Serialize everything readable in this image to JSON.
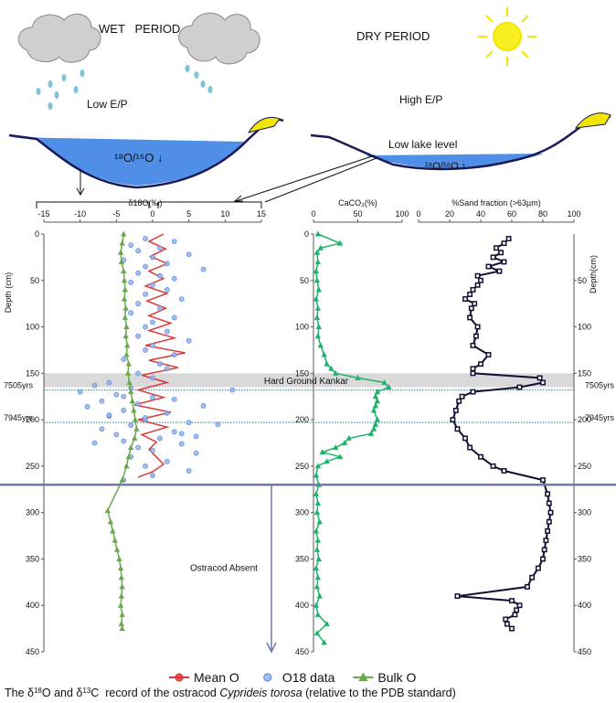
{
  "illustration": {
    "wet": "WET   PERIOD",
    "dry": "DRY PERIOD",
    "low_ep": "Low E/P",
    "high_ep": "High E/P",
    "low_lake": "Low lake level",
    "ratio_wet": "¹⁸O/¹⁶O ↓",
    "ratio_dry": "¹⁸O/¹⁶O ↑"
  },
  "chart_data": [
    {
      "type": "profile",
      "x_label": "δ18O(‰)",
      "y_label": "Depth (cm)",
      "y_axis": "left",
      "xlim": [
        -15,
        15
      ],
      "xticks": [
        -15,
        -10,
        -5,
        0,
        5,
        10,
        15
      ],
      "ylim": [
        0,
        450
      ],
      "yticks": [
        0,
        50,
        100,
        150,
        200,
        250,
        300,
        350,
        400,
        450
      ],
      "series": [
        {
          "name": "Mean O",
          "color": "#d93a3a",
          "marker": "none",
          "line": true,
          "depth": [
            0,
            8,
            16,
            24,
            32,
            40,
            48,
            56,
            64,
            72,
            80,
            88,
            96,
            104,
            112,
            120,
            128,
            136,
            144,
            152,
            160,
            168,
            176,
            184,
            192,
            200,
            208,
            216,
            224,
            232,
            240,
            248,
            256,
            262
          ],
          "values": [
            1.5,
            -0.5,
            1.8,
            -0.3,
            2.0,
            -0.5,
            1.5,
            -1.0,
            2.0,
            -0.8,
            1.8,
            -0.5,
            2.5,
            -0.5,
            3.0,
            -1.0,
            4.5,
            -0.5,
            3.5,
            -1.5,
            2.0,
            -2.0,
            1.5,
            -2.5,
            2.5,
            -2.0,
            2.0,
            -1.5,
            0.5,
            -0.5,
            0.5,
            1.5,
            0.0,
            -2.0
          ]
        },
        {
          "name": "O18 data",
          "color": "#8fb3ee",
          "marker": "circle",
          "line": false,
          "depth": [
            5,
            8,
            12,
            15,
            18,
            22,
            25,
            28,
            32,
            35,
            38,
            42,
            45,
            48,
            52,
            55,
            60,
            65,
            70,
            75,
            80,
            85,
            90,
            95,
            100,
            105,
            110,
            115,
            120,
            125,
            130,
            135,
            140,
            145,
            150,
            155,
            160,
            163,
            166,
            170,
            173,
            176,
            180,
            183,
            186,
            190,
            193,
            196,
            200,
            203,
            206,
            210,
            213,
            216,
            220,
            223,
            226,
            230,
            233,
            236,
            240,
            245,
            250,
            255,
            260,
            265,
            168,
            175,
            185,
            195,
            205,
            215,
            225,
            178,
            198,
            218
          ],
          "values": [
            -1,
            3,
            -3,
            1,
            -2,
            5,
            0,
            -4,
            2,
            -1,
            7,
            -2,
            1,
            3,
            -3,
            0,
            2,
            -1,
            4,
            -2,
            1,
            -3,
            3,
            0,
            -1,
            2,
            -2,
            5,
            0,
            -1,
            3,
            -4,
            1,
            2,
            -2,
            0,
            -6,
            -8,
            -3,
            -10,
            -5,
            0,
            -7,
            -2,
            -9,
            -4,
            2,
            -6,
            -1,
            5,
            -3,
            -7,
            3,
            -5,
            1,
            -4,
            4,
            -2,
            0,
            6,
            -3,
            2,
            -1,
            5,
            0,
            -4,
            11,
            -4,
            7,
            -6,
            9,
            4,
            -8,
            3,
            -1,
            6
          ]
        },
        {
          "name": "Bulk O",
          "color": "#6aa84f",
          "marker": "triangle",
          "line": true,
          "depth": [
            0,
            10,
            20,
            30,
            40,
            50,
            60,
            70,
            80,
            90,
            100,
            110,
            120,
            130,
            140,
            150,
            160,
            170,
            180,
            190,
            200,
            210,
            220,
            230,
            240,
            250,
            265,
            298,
            310,
            320,
            330,
            340,
            350,
            360,
            370,
            380,
            390,
            400,
            410,
            420,
            425
          ],
          "values": [
            -4.0,
            -4.2,
            -4.4,
            -4.3,
            -4.0,
            -3.9,
            -3.8,
            -3.9,
            -3.7,
            -3.8,
            -3.6,
            -3.7,
            -3.5,
            -3.6,
            -3.3,
            -3.4,
            -3.2,
            -3.0,
            -2.8,
            -2.6,
            -2.4,
            -2.2,
            -2.5,
            -3.0,
            -3.3,
            -3.6,
            -4.2,
            -6.2,
            -5.8,
            -5.5,
            -5.2,
            -4.9,
            -4.6,
            -4.4,
            -4.3,
            -4.2,
            -4.3,
            -4.4,
            -4.2,
            -4.3,
            -4.2
          ]
        }
      ]
    },
    {
      "type": "profile",
      "x_label": "CaCO₃(%)",
      "y_axis": "left",
      "xlim": [
        0,
        100
      ],
      "xticks": [
        0,
        50,
        100
      ],
      "ylim": [
        0,
        450
      ],
      "yticks": [
        0,
        50,
        100,
        150,
        200,
        250,
        300,
        350,
        400,
        450
      ],
      "series": [
        {
          "color": "#1fb36a",
          "marker": "triangle",
          "line": true,
          "depth": [
            0,
            10,
            15,
            20,
            30,
            40,
            50,
            60,
            70,
            80,
            90,
            100,
            110,
            120,
            130,
            140,
            145,
            150,
            155,
            160,
            165,
            170,
            175,
            180,
            185,
            190,
            200,
            205,
            210,
            215,
            220,
            225,
            230,
            235,
            240,
            245,
            250,
            260,
            270,
            280,
            290,
            300,
            310,
            320,
            330,
            340,
            350,
            360,
            370,
            380,
            390,
            400,
            410,
            420,
            430,
            440
          ],
          "values": [
            5,
            30,
            8,
            4,
            5,
            3,
            4,
            6,
            3,
            5,
            4,
            6,
            5,
            8,
            12,
            15,
            20,
            25,
            50,
            80,
            85,
            72,
            70,
            72,
            70,
            68,
            72,
            70,
            68,
            65,
            40,
            35,
            25,
            10,
            30,
            15,
            5,
            3,
            6,
            3,
            5,
            4,
            7,
            3,
            5,
            4,
            6,
            3,
            5,
            4,
            7,
            3,
            5,
            15,
            4,
            12
          ]
        }
      ]
    },
    {
      "type": "profile",
      "x_label": "%Sand fraction (>63µm)",
      "y_label": "Depth(cm)",
      "y_axis": "right",
      "xlim": [
        0,
        100
      ],
      "xticks": [
        0,
        20,
        40,
        60,
        80,
        100
      ],
      "ylim": [
        0,
        450
      ],
      "yticks": [
        50,
        100,
        150,
        200,
        250,
        300,
        350,
        400,
        450
      ],
      "series": [
        {
          "color": "#111133",
          "marker": "square",
          "line": true,
          "depth": [
            5,
            10,
            15,
            20,
            25,
            30,
            35,
            40,
            45,
            50,
            55,
            60,
            65,
            70,
            75,
            80,
            90,
            100,
            110,
            120,
            130,
            140,
            145,
            150,
            155,
            160,
            165,
            170,
            175,
            180,
            190,
            200,
            210,
            220,
            230,
            240,
            250,
            255,
            265,
            280,
            290,
            300,
            310,
            320,
            330,
            340,
            350,
            360,
            370,
            380,
            390,
            395,
            400,
            405,
            410,
            415,
            420,
            425
          ],
          "values": [
            58,
            55,
            50,
            53,
            48,
            55,
            45,
            52,
            38,
            40,
            38,
            35,
            33,
            30,
            36,
            34,
            33,
            38,
            37,
            35,
            45,
            40,
            35,
            35,
            78,
            80,
            65,
            35,
            28,
            26,
            24,
            22,
            25,
            30,
            33,
            40,
            48,
            55,
            80,
            83,
            84,
            85,
            84,
            83,
            82,
            81,
            80,
            77,
            73,
            70,
            25,
            60,
            65,
            63,
            62,
            56,
            57,
            60
          ]
        }
      ]
    }
  ],
  "overlay": {
    "band": {
      "label": "Hard Ground Kankar",
      "from": 150,
      "to": 165
    },
    "ages": [
      {
        "depth": 168,
        "label": "7505yrs"
      },
      {
        "depth": 203,
        "label": "7945yrs"
      }
    ],
    "limit": {
      "depth": 270,
      "label": "Ostracod Absent"
    }
  },
  "caption": [
    {
      "text": "The δ"
    },
    {
      "text": "18",
      "style": "sup"
    },
    {
      "text": "O and δ"
    },
    {
      "text": "13",
      "style": "sup"
    },
    {
      "text": "C  record of the ostracod "
    },
    {
      "text": "Cyprideis torosa",
      "style": "italic"
    },
    {
      "text": " (relative to the PDB standard)"
    }
  ]
}
